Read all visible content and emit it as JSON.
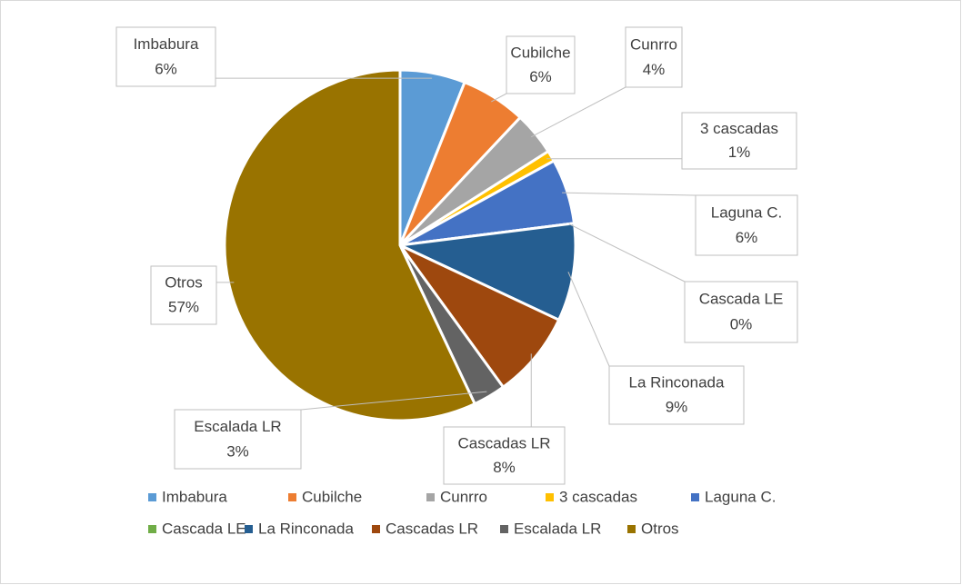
{
  "chart_data": {
    "type": "pie",
    "categories": [
      "Imbabura",
      "Cubilche",
      "Cunrro",
      "3 cascadas",
      "Laguna C.",
      "Cascada LE",
      "La Rinconada",
      "Cascadas LR",
      "Escalada LR",
      "Otros"
    ],
    "values": [
      6,
      6,
      4,
      1,
      6,
      0,
      9,
      8,
      3,
      57
    ],
    "value_labels": [
      "6%",
      "6%",
      "4%",
      "1%",
      "6%",
      "0%",
      "9%",
      "8%",
      "3%",
      "57%"
    ],
    "colors": [
      "#5b9bd5",
      "#ed7d31",
      "#a5a5a5",
      "#ffc000",
      "#4472c4",
      "#70ad47",
      "#255e91",
      "#9e480e",
      "#636363",
      "#997300"
    ],
    "legend": "bottom"
  }
}
